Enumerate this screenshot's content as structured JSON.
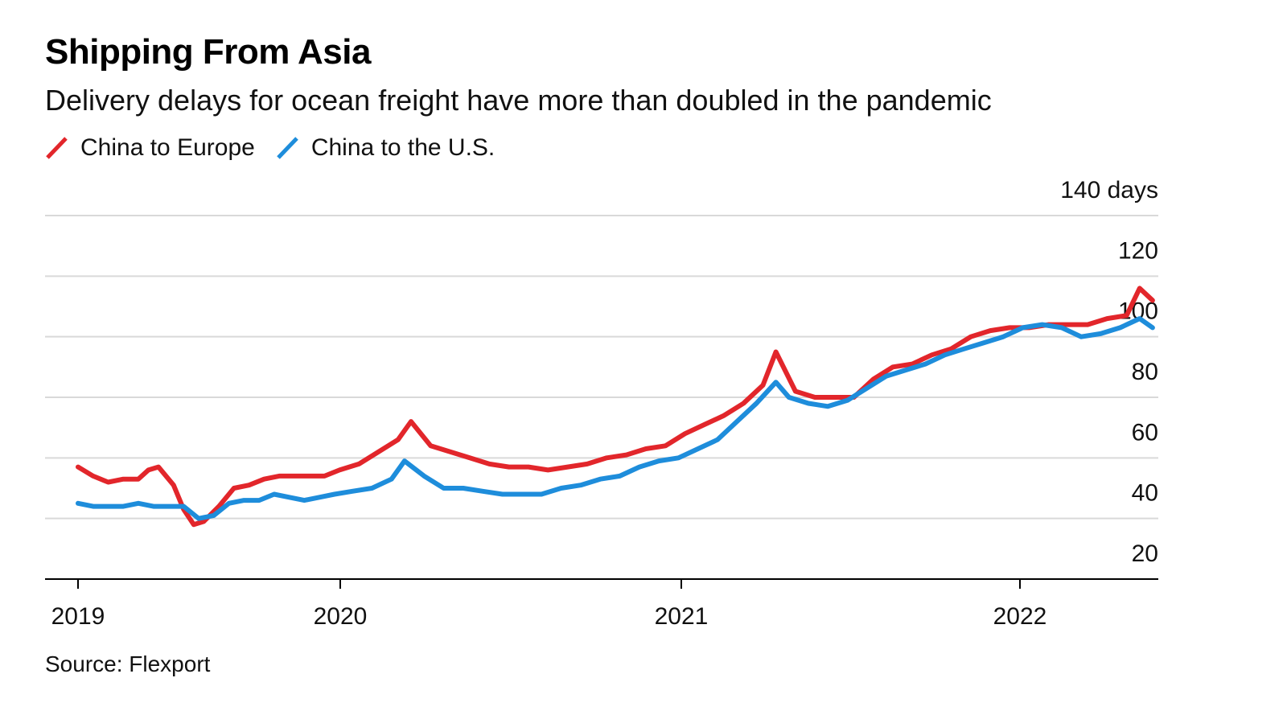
{
  "title": "Shipping From Asia",
  "subtitle": "Delivery delays for ocean freight have more than doubled in the pandemic",
  "source": "Source: Flexport",
  "colors": {
    "china_to_europe": "#e2262b",
    "china_to_us": "#1e8ddb",
    "grid": "#d9d9d9",
    "axis": "#000000"
  },
  "legend": [
    {
      "label": "China to Europe",
      "color": "#e2262b"
    },
    {
      "label": "China to the U.S.",
      "color": "#1e8ddb"
    }
  ],
  "chart_data": {
    "type": "line",
    "title": "Shipping From Asia",
    "subtitle": "Delivery delays for ocean freight have more than doubled in the pandemic",
    "ylabel": "",
    "xlabel": "",
    "ylim": [
      20,
      140
    ],
    "y_ticks": [
      20,
      40,
      60,
      80,
      100,
      120,
      140
    ],
    "y_tick_labels": [
      "20",
      "40",
      "60",
      "80",
      "100",
      "120",
      "140 days"
    ],
    "x_ticks": [
      "2019-01-01",
      "2020-01-01",
      "2021-01-01",
      "2022-01-01"
    ],
    "x_tick_labels": [
      "2019",
      "2020",
      "2021",
      "2022"
    ],
    "x_range": [
      "2018-11-01",
      "2022-07-01"
    ],
    "grid": "horizontal",
    "legend_position": "top-left",
    "series": [
      {
        "name": "China to Europe",
        "color": "#e2262b",
        "points": [
          [
            "2019-01-01",
            57
          ],
          [
            "2019-01-22",
            54
          ],
          [
            "2019-02-12",
            52
          ],
          [
            "2019-03-05",
            53
          ],
          [
            "2019-03-26",
            53
          ],
          [
            "2019-04-09",
            56
          ],
          [
            "2019-04-23",
            57
          ],
          [
            "2019-05-14",
            51
          ],
          [
            "2019-05-28",
            43
          ],
          [
            "2019-06-11",
            38
          ],
          [
            "2019-06-25",
            39
          ],
          [
            "2019-07-16",
            44
          ],
          [
            "2019-08-06",
            50
          ],
          [
            "2019-08-27",
            51
          ],
          [
            "2019-09-17",
            53
          ],
          [
            "2019-10-08",
            54
          ],
          [
            "2019-10-29",
            54
          ],
          [
            "2019-11-19",
            54
          ],
          [
            "2019-12-10",
            54
          ],
          [
            "2019-12-31",
            56
          ],
          [
            "2020-01-21",
            58
          ],
          [
            "2020-02-11",
            62
          ],
          [
            "2020-03-03",
            66
          ],
          [
            "2020-03-17",
            72
          ],
          [
            "2020-04-07",
            64
          ],
          [
            "2020-04-28",
            62
          ],
          [
            "2020-05-19",
            60
          ],
          [
            "2020-06-09",
            58
          ],
          [
            "2020-06-30",
            57
          ],
          [
            "2020-07-21",
            57
          ],
          [
            "2020-08-11",
            56
          ],
          [
            "2020-09-01",
            57
          ],
          [
            "2020-09-22",
            58
          ],
          [
            "2020-10-13",
            60
          ],
          [
            "2020-11-03",
            61
          ],
          [
            "2020-11-24",
            63
          ],
          [
            "2020-12-15",
            64
          ],
          [
            "2021-01-05",
            68
          ],
          [
            "2021-01-26",
            71
          ],
          [
            "2021-02-16",
            74
          ],
          [
            "2021-03-09",
            78
          ],
          [
            "2021-03-30",
            84
          ],
          [
            "2021-04-13",
            95
          ],
          [
            "2021-05-04",
            82
          ],
          [
            "2021-05-25",
            80
          ],
          [
            "2021-06-15",
            80
          ],
          [
            "2021-07-06",
            80
          ],
          [
            "2021-07-27",
            86
          ],
          [
            "2021-08-17",
            90
          ],
          [
            "2021-09-07",
            91
          ],
          [
            "2021-09-28",
            94
          ],
          [
            "2021-10-19",
            96
          ],
          [
            "2021-11-09",
            100
          ],
          [
            "2021-11-30",
            102
          ],
          [
            "2021-12-21",
            103
          ],
          [
            "2022-01-11",
            103
          ],
          [
            "2022-02-01",
            104
          ],
          [
            "2022-02-22",
            104
          ],
          [
            "2022-03-15",
            104
          ],
          [
            "2022-04-05",
            106
          ],
          [
            "2022-04-26",
            107
          ],
          [
            "2022-05-10",
            116
          ],
          [
            "2022-05-24",
            112
          ]
        ]
      },
      {
        "name": "China to the U.S.",
        "color": "#1e8ddb",
        "points": [
          [
            "2019-01-01",
            45
          ],
          [
            "2019-01-22",
            44
          ],
          [
            "2019-02-12",
            44
          ],
          [
            "2019-03-05",
            44
          ],
          [
            "2019-03-26",
            45
          ],
          [
            "2019-04-16",
            44
          ],
          [
            "2019-05-07",
            44
          ],
          [
            "2019-05-28",
            44
          ],
          [
            "2019-06-18",
            40
          ],
          [
            "2019-07-09",
            41
          ],
          [
            "2019-07-30",
            45
          ],
          [
            "2019-08-20",
            46
          ],
          [
            "2019-09-10",
            46
          ],
          [
            "2019-10-01",
            48
          ],
          [
            "2019-10-22",
            47
          ],
          [
            "2019-11-12",
            46
          ],
          [
            "2019-12-03",
            47
          ],
          [
            "2019-12-24",
            48
          ],
          [
            "2020-01-14",
            49
          ],
          [
            "2020-02-04",
            50
          ],
          [
            "2020-02-25",
            53
          ],
          [
            "2020-03-10",
            59
          ],
          [
            "2020-03-31",
            54
          ],
          [
            "2020-04-21",
            50
          ],
          [
            "2020-05-12",
            50
          ],
          [
            "2020-06-02",
            49
          ],
          [
            "2020-06-23",
            48
          ],
          [
            "2020-07-14",
            48
          ],
          [
            "2020-08-04",
            48
          ],
          [
            "2020-08-25",
            50
          ],
          [
            "2020-09-15",
            51
          ],
          [
            "2020-10-06",
            53
          ],
          [
            "2020-10-27",
            54
          ],
          [
            "2020-11-17",
            57
          ],
          [
            "2020-12-08",
            59
          ],
          [
            "2020-12-29",
            60
          ],
          [
            "2021-01-19",
            63
          ],
          [
            "2021-02-09",
            66
          ],
          [
            "2021-03-02",
            72
          ],
          [
            "2021-03-23",
            78
          ],
          [
            "2021-04-13",
            85
          ],
          [
            "2021-04-27",
            80
          ],
          [
            "2021-05-18",
            78
          ],
          [
            "2021-06-08",
            77
          ],
          [
            "2021-06-29",
            79
          ],
          [
            "2021-07-20",
            83
          ],
          [
            "2021-08-10",
            87
          ],
          [
            "2021-08-31",
            89
          ],
          [
            "2021-09-21",
            91
          ],
          [
            "2021-10-12",
            94
          ],
          [
            "2021-11-02",
            96
          ],
          [
            "2021-11-23",
            98
          ],
          [
            "2021-12-14",
            100
          ],
          [
            "2022-01-04",
            103
          ],
          [
            "2022-01-25",
            104
          ],
          [
            "2022-02-15",
            103
          ],
          [
            "2022-03-08",
            100
          ],
          [
            "2022-03-29",
            101
          ],
          [
            "2022-04-19",
            103
          ],
          [
            "2022-05-10",
            106
          ],
          [
            "2022-05-24",
            103
          ]
        ]
      }
    ]
  }
}
